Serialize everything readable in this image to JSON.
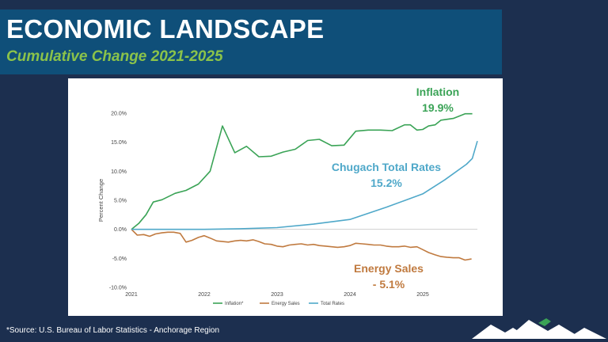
{
  "header": {
    "title": "ECONOMIC LANDSCAPE",
    "subtitle": "Cumulative Change 2021-2025"
  },
  "footer": {
    "source": "*Source: U.S. Bureau of Labor Statistics - Anchorage Region"
  },
  "colors": {
    "inflation": "#3aa356",
    "energy": "#c07a3f",
    "rates": "#4fa8c9",
    "background": "#1c2f4f",
    "title_band": "#0f4f79",
    "subtitle": "#8bc34a"
  },
  "chart_data": {
    "type": "line",
    "title": "",
    "xlabel": "",
    "ylabel": "Percent Change",
    "xlim": [
      2021,
      2025.75
    ],
    "ylim": [
      -10,
      20
    ],
    "x_ticks": [
      2021,
      2022,
      2023,
      2024,
      2025
    ],
    "x_tick_labels": [
      "2021",
      "2022",
      "2023",
      "2024",
      "2025"
    ],
    "y_ticks": [
      20,
      15,
      10,
      5,
      0,
      -5,
      -10
    ],
    "y_tick_labels": [
      "20.0%",
      "15.0%",
      "10.0%",
      "5.0%",
      "0.0%",
      "-5.0%",
      "-10.0%"
    ],
    "grid": false,
    "legend_position": "bottom",
    "series": [
      {
        "name": "Inflation*",
        "color_key": "inflation",
        "x": [
          2021,
          2021.1,
          2021.2,
          2021.3,
          2021.42,
          2021.6,
          2021.75,
          2021.92,
          2022.08,
          2022.25,
          2022.42,
          2022.58,
          2022.75,
          2022.92,
          2023.08,
          2023.25,
          2023.42,
          2023.58,
          2023.75,
          2023.92,
          2024.08,
          2024.25,
          2024.42,
          2024.58,
          2024.75,
          2024.83,
          2024.92,
          2025.0,
          2025.08,
          2025.17,
          2025.25,
          2025.42,
          2025.58,
          2025.68
        ],
        "y": [
          0,
          1.0,
          2.5,
          4.7,
          5.1,
          6.2,
          6.7,
          7.8,
          10.0,
          17.8,
          13.2,
          14.3,
          12.5,
          12.6,
          13.3,
          13.8,
          15.3,
          15.5,
          14.4,
          14.5,
          16.9,
          17.1,
          17.1,
          17.0,
          18.0,
          18.0,
          17.1,
          17.2,
          17.8,
          18.0,
          18.8,
          19.1,
          19.9,
          19.9
        ]
      },
      {
        "name": "Energy Sales",
        "color_key": "energy",
        "x": [
          2021,
          2021.08,
          2021.17,
          2021.25,
          2021.33,
          2021.42,
          2021.5,
          2021.58,
          2021.67,
          2021.75,
          2021.83,
          2021.92,
          2022.0,
          2022.08,
          2022.17,
          2022.25,
          2022.33,
          2022.42,
          2022.5,
          2022.58,
          2022.67,
          2022.75,
          2022.83,
          2022.92,
          2023.0,
          2023.08,
          2023.17,
          2023.25,
          2023.33,
          2023.42,
          2023.5,
          2023.58,
          2023.67,
          2023.75,
          2023.83,
          2023.92,
          2024.0,
          2024.08,
          2024.17,
          2024.25,
          2024.33,
          2024.42,
          2024.5,
          2024.58,
          2024.67,
          2024.75,
          2024.83,
          2024.92,
          2025.0,
          2025.08,
          2025.17,
          2025.25,
          2025.33,
          2025.42,
          2025.5,
          2025.58,
          2025.67
        ],
        "y": [
          0,
          -1.0,
          -0.9,
          -1.2,
          -0.8,
          -0.6,
          -0.5,
          -0.5,
          -0.7,
          -2.2,
          -1.9,
          -1.4,
          -1.1,
          -1.5,
          -2.0,
          -2.1,
          -2.2,
          -2.0,
          -1.9,
          -2.0,
          -1.8,
          -2.1,
          -2.5,
          -2.6,
          -2.9,
          -3.0,
          -2.7,
          -2.6,
          -2.5,
          -2.7,
          -2.6,
          -2.8,
          -2.9,
          -3.0,
          -3.1,
          -3.0,
          -2.8,
          -2.4,
          -2.5,
          -2.6,
          -2.7,
          -2.7,
          -2.9,
          -3.0,
          -3.0,
          -2.9,
          -3.1,
          -3.0,
          -3.5,
          -4.0,
          -4.4,
          -4.7,
          -4.8,
          -4.9,
          -4.9,
          -5.3,
          -5.1
        ]
      },
      {
        "name": "Total Rates",
        "color_key": "rates",
        "x": [
          2021,
          2021.5,
          2022,
          2022.5,
          2023,
          2023.5,
          2024,
          2024.5,
          2025,
          2025.3,
          2025.6,
          2025.68,
          2025.75
        ],
        "y": [
          0,
          0,
          0,
          0.1,
          0.3,
          0.9,
          1.7,
          3.8,
          6.1,
          8.5,
          11.2,
          12.2,
          15.2
        ]
      }
    ],
    "annotations": [
      {
        "name": "inflation-annotation",
        "color_key": "inflation",
        "lines": [
          "Inflation",
          "19.9%"
        ]
      },
      {
        "name": "rates-annotation",
        "color_key": "rates",
        "lines": [
          "Chugach Total Rates",
          "15.2%"
        ]
      },
      {
        "name": "energy-annotation",
        "color_key": "energy",
        "lines": [
          "Energy Sales",
          "- 5.1%"
        ]
      }
    ]
  }
}
